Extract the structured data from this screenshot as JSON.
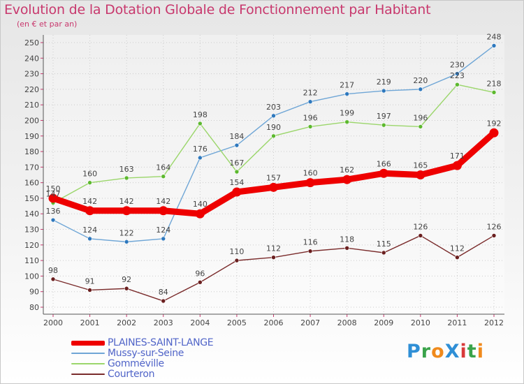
{
  "colors": {
    "title": "#c8386d",
    "axis": "#555555",
    "grid": "#cccccc",
    "legend_text": "#5064c8"
  },
  "logo": {
    "text": "ProXiti",
    "letters": [
      "P",
      "r",
      "o",
      "X",
      "i",
      "t",
      "i"
    ],
    "letter_colors": [
      "#2f8fd6",
      "#3aa34a",
      "#f08a1c",
      "#2f8fd6",
      "#d93a3a",
      "#3aa34a",
      "#f08a1c"
    ]
  },
  "chart_data": {
    "type": "line",
    "title": "Evolution de la Dotation Globale de Fonctionnement par Habitant",
    "subtitle": "(en € et par an)",
    "xlabel": "",
    "ylabel": "",
    "categories": [
      "2000",
      "2001",
      "2002",
      "2003",
      "2004",
      "2005",
      "2006",
      "2007",
      "2008",
      "2009",
      "2010",
      "2011",
      "2012"
    ],
    "ylim": [
      80,
      250
    ],
    "yticks": [
      "80",
      "90",
      "100",
      "110",
      "120",
      "130",
      "140",
      "150",
      "160",
      "170",
      "180",
      "190",
      "200",
      "210",
      "220",
      "230",
      "240",
      "250"
    ],
    "grid": true,
    "legend_position": "bottom-left",
    "series": [
      {
        "name": "PLAINES-SAINT-LANGE",
        "color": "#ee0000",
        "emphasis": true,
        "values": [
          150,
          142,
          142,
          142,
          140,
          154,
          157,
          160,
          162,
          166,
          165,
          171,
          192
        ],
        "labels": [
          "150",
          "142",
          "142",
          "142",
          "140",
          "154",
          "157",
          "160",
          "162",
          "166",
          "165",
          "171",
          "192"
        ]
      },
      {
        "name": "Mussy-sur-Seine",
        "color": "#6fa6d6",
        "marker": "#2e78bd",
        "emphasis": false,
        "values": [
          136,
          124,
          122,
          124,
          176,
          184,
          203,
          212,
          217,
          219,
          220,
          230,
          248
        ],
        "labels": [
          "136",
          "124",
          "122",
          "124",
          "176",
          "184",
          "203",
          "212",
          "217",
          "219",
          "220",
          "230",
          "248"
        ]
      },
      {
        "name": "Gomméville",
        "color": "#9bd66b",
        "marker": "#5cb82e",
        "emphasis": false,
        "values": [
          147,
          160,
          163,
          164,
          198,
          167,
          190,
          196,
          199,
          197,
          196,
          223,
          218
        ],
        "labels": [
          "147",
          "160",
          "163",
          "164",
          "198",
          "167",
          "190",
          "196",
          "199",
          "197",
          "196",
          "223",
          "218"
        ]
      },
      {
        "name": "Courteron",
        "color": "#7a2b2b",
        "marker": "#6a1f1f",
        "emphasis": false,
        "values": [
          98,
          91,
          92,
          84,
          96,
          110,
          112,
          116,
          118,
          115,
          126,
          112,
          126
        ],
        "labels": [
          "98",
          "91",
          "92",
          "84",
          "96",
          "110",
          "112",
          "116",
          "118",
          "115",
          "126",
          "112",
          "126"
        ]
      }
    ]
  }
}
